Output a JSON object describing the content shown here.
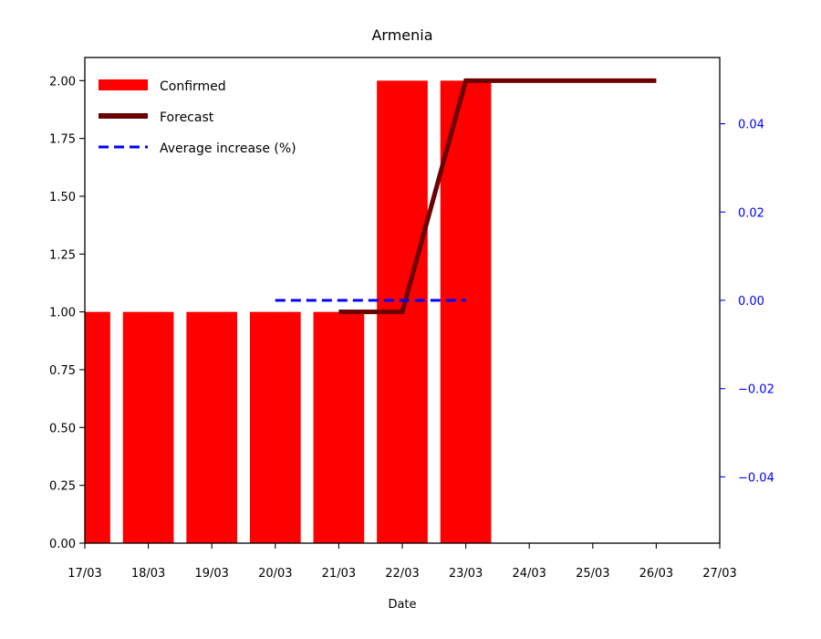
{
  "chart_data": {
    "type": "bar",
    "title": "Armenia",
    "xlabel": "Date",
    "ylabel": "",
    "x_ticks": [
      "17/03",
      "18/03",
      "19/03",
      "20/03",
      "21/03",
      "22/03",
      "23/03",
      "24/03",
      "25/03",
      "26/03",
      "27/03"
    ],
    "xlim": [
      0,
      10
    ],
    "ylim": [
      0,
      2.1
    ],
    "y_ticks": [
      "0.00",
      "0.25",
      "0.50",
      "0.75",
      "1.00",
      "1.25",
      "1.50",
      "1.75",
      "2.00"
    ],
    "y2lim": [
      -0.055,
      0.055
    ],
    "y2_ticks": [
      "−0.04",
      "−0.02",
      "0.00",
      "0.02",
      "0.04"
    ],
    "grid": false,
    "legend_position": "top-left",
    "bars": {
      "name": "Confirmed",
      "color": "#ff0000",
      "x": [
        "17/03",
        "18/03",
        "19/03",
        "20/03",
        "21/03",
        "22/03",
        "23/03"
      ],
      "values": [
        1,
        1,
        1,
        1,
        1,
        2,
        2
      ]
    },
    "series": [
      {
        "name": "Forecast",
        "color": "#6b0000",
        "style": "solid",
        "axis": "left",
        "x": [
          "21/03",
          "22/03",
          "23/03",
          "24/03",
          "25/03",
          "26/03"
        ],
        "values": [
          1.0,
          1.0,
          2.0,
          2.0,
          2.0,
          2.0
        ]
      },
      {
        "name": "Average increase (%)",
        "color": "#0000ff",
        "style": "dashed",
        "axis": "right",
        "x": [
          "20/03",
          "21/03",
          "22/03",
          "23/03"
        ],
        "values": [
          0,
          0,
          0,
          0
        ]
      }
    ],
    "legend": [
      "Confirmed",
      "Forecast",
      "Average increase (%)"
    ]
  }
}
